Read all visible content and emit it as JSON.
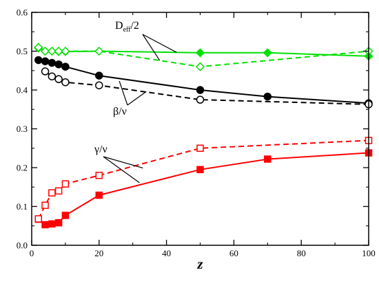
{
  "chart_data": {
    "type": "line",
    "title": "",
    "xlabel": "z",
    "ylabel": "",
    "xlim": [
      0,
      100
    ],
    "ylim": [
      0,
      0.6
    ],
    "x_ticks": [
      0,
      20,
      40,
      60,
      80,
      100
    ],
    "x_tick_labels": [
      "0",
      "20",
      "40",
      "60",
      "80",
      "100"
    ],
    "y_ticks": [
      0,
      0.1,
      0.2,
      0.3,
      0.4,
      0.5,
      0.6
    ],
    "y_tick_labels": [
      "0.0",
      "0.1",
      "0.2",
      "0.3",
      "0.4",
      "0.5",
      "0.6"
    ],
    "grid": false,
    "legend": "none",
    "series": [
      {
        "color": "#00e000",
        "marker": "diamond-filled",
        "dash": "solid",
        "x": [
          2,
          4,
          6,
          8,
          10,
          20,
          50,
          70,
          100
        ],
        "y": [
          0.508,
          0.5,
          0.5,
          0.499,
          0.499,
          0.5,
          0.496,
          0.496,
          0.487
        ]
      },
      {
        "color": "#00e000",
        "marker": "diamond-open",
        "dash": "dashed",
        "x": [
          2,
          4,
          6,
          8,
          10,
          20,
          50,
          100
        ],
        "y": [
          0.51,
          0.5,
          0.5,
          0.5,
          0.5,
          0.5,
          0.46,
          0.5
        ]
      },
      {
        "color": "#000000",
        "marker": "circle-filled",
        "dash": "solid",
        "x": [
          2,
          4,
          6,
          8,
          10,
          20,
          50,
          70,
          100
        ],
        "y": [
          0.477,
          0.474,
          0.47,
          0.466,
          0.46,
          0.437,
          0.4,
          0.383,
          0.366
        ]
      },
      {
        "color": "#000000",
        "marker": "circle-open",
        "dash": "dashed",
        "x": [
          4,
          6,
          8,
          10,
          20,
          50,
          100
        ],
        "y": [
          0.448,
          0.435,
          0.428,
          0.42,
          0.412,
          0.375,
          0.363
        ]
      },
      {
        "color": "#ff0000",
        "marker": "square-filled",
        "dash": "solid",
        "x": [
          2,
          4,
          6,
          8,
          10,
          20,
          50,
          70,
          100
        ],
        "y": [
          0.067,
          0.053,
          0.055,
          0.058,
          0.077,
          0.129,
          0.195,
          0.222,
          0.238
        ]
      },
      {
        "color": "#ff0000",
        "marker": "square-open",
        "dash": "dashed",
        "x": [
          2,
          4,
          6,
          8,
          10,
          20,
          50,
          100
        ],
        "y": [
          0.068,
          0.103,
          0.135,
          0.14,
          0.158,
          0.18,
          0.25,
          0.27
        ]
      }
    ],
    "annotations": [
      {
        "id": "deff",
        "main": "D",
        "sub": "eff",
        "tail": "/2",
        "color": "#000000"
      },
      {
        "id": "beta",
        "main": "β/ν",
        "color": "#000000"
      },
      {
        "id": "gamma",
        "main": "γ/ν",
        "color": "#000000"
      }
    ]
  }
}
